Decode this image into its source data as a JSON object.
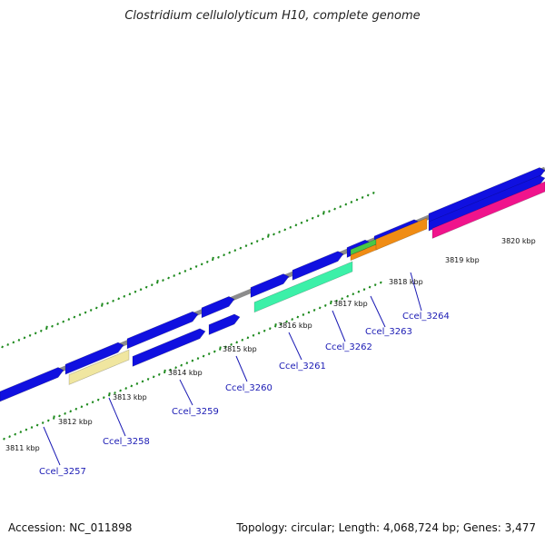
{
  "title": "Clostridium cellulolyticum H10, complete genome",
  "footer": {
    "accession": "Accession: NC_011898",
    "stats": "Topology: circular; Length: 4,068,724 bp; Genes: 3,477"
  },
  "colors": {
    "backbone": "#8c8c8c",
    "forward_gene": "#1010e0",
    "ticks": "#1e8a1e",
    "label": "#1a1ab4",
    "pale_yellow": "#f0e6a0",
    "aqua": "#3cf0a8",
    "green": "#48c848",
    "orange": "#f08c14",
    "pink": "#f0148c"
  },
  "kbp_labels": [
    "3811 kbp",
    "3812 kbp",
    "3813 kbp",
    "3814 kbp",
    "3815 kbp",
    "3816 kbp",
    "3817 kbp",
    "3818 kbp",
    "3819 kbp",
    "3820 kbp"
  ],
  "gene_labels": [
    "Ccel_3257",
    "Ccel_3258",
    "Ccel_3259",
    "Ccel_3260",
    "Ccel_3261",
    "Ccel_3262",
    "Ccel_3263",
    "Ccel_3264"
  ]
}
